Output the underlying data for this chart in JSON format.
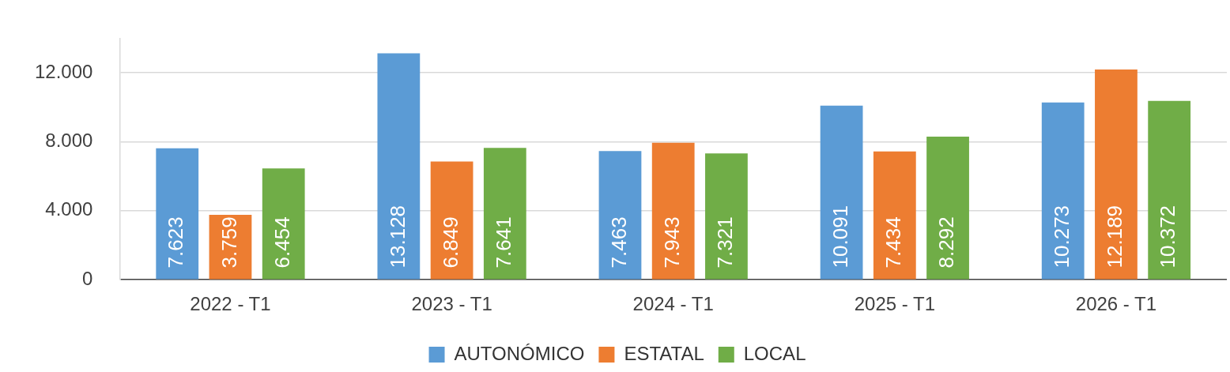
{
  "chart_data": {
    "type": "bar",
    "categories": [
      "2022 - T1",
      "2023 - T1",
      "2024 - T1",
      "2025 - T1",
      "2026 - T1"
    ],
    "series": [
      {
        "name": "AUTONÓMICO",
        "color": "#5b9bd5",
        "values": [
          7623,
          13128,
          7463,
          10091,
          10273
        ],
        "value_labels": [
          "7.623",
          "13.128",
          "7.463",
          "10.091",
          "10.273"
        ]
      },
      {
        "name": "ESTATAL",
        "color": "#ed7d31",
        "values": [
          3759,
          6849,
          7943,
          7434,
          12189
        ],
        "value_labels": [
          "3.759",
          "6.849",
          "7.943",
          "7.434",
          "12.189"
        ]
      },
      {
        "name": "LOCAL",
        "color": "#70ad47",
        "values": [
          6454,
          7641,
          7321,
          8292,
          10372
        ],
        "value_labels": [
          "6.454",
          "7.641",
          "7.321",
          "8.292",
          "10.372"
        ]
      }
    ],
    "ylim": [
      0,
      14000
    ],
    "yticks": [
      {
        "value": 0,
        "label": "0"
      },
      {
        "value": 4000,
        "label": "4.000"
      },
      {
        "value": 8000,
        "label": "8.000"
      },
      {
        "value": 12000,
        "label": "12.000"
      }
    ],
    "grid": "y",
    "legend": "bottom"
  }
}
